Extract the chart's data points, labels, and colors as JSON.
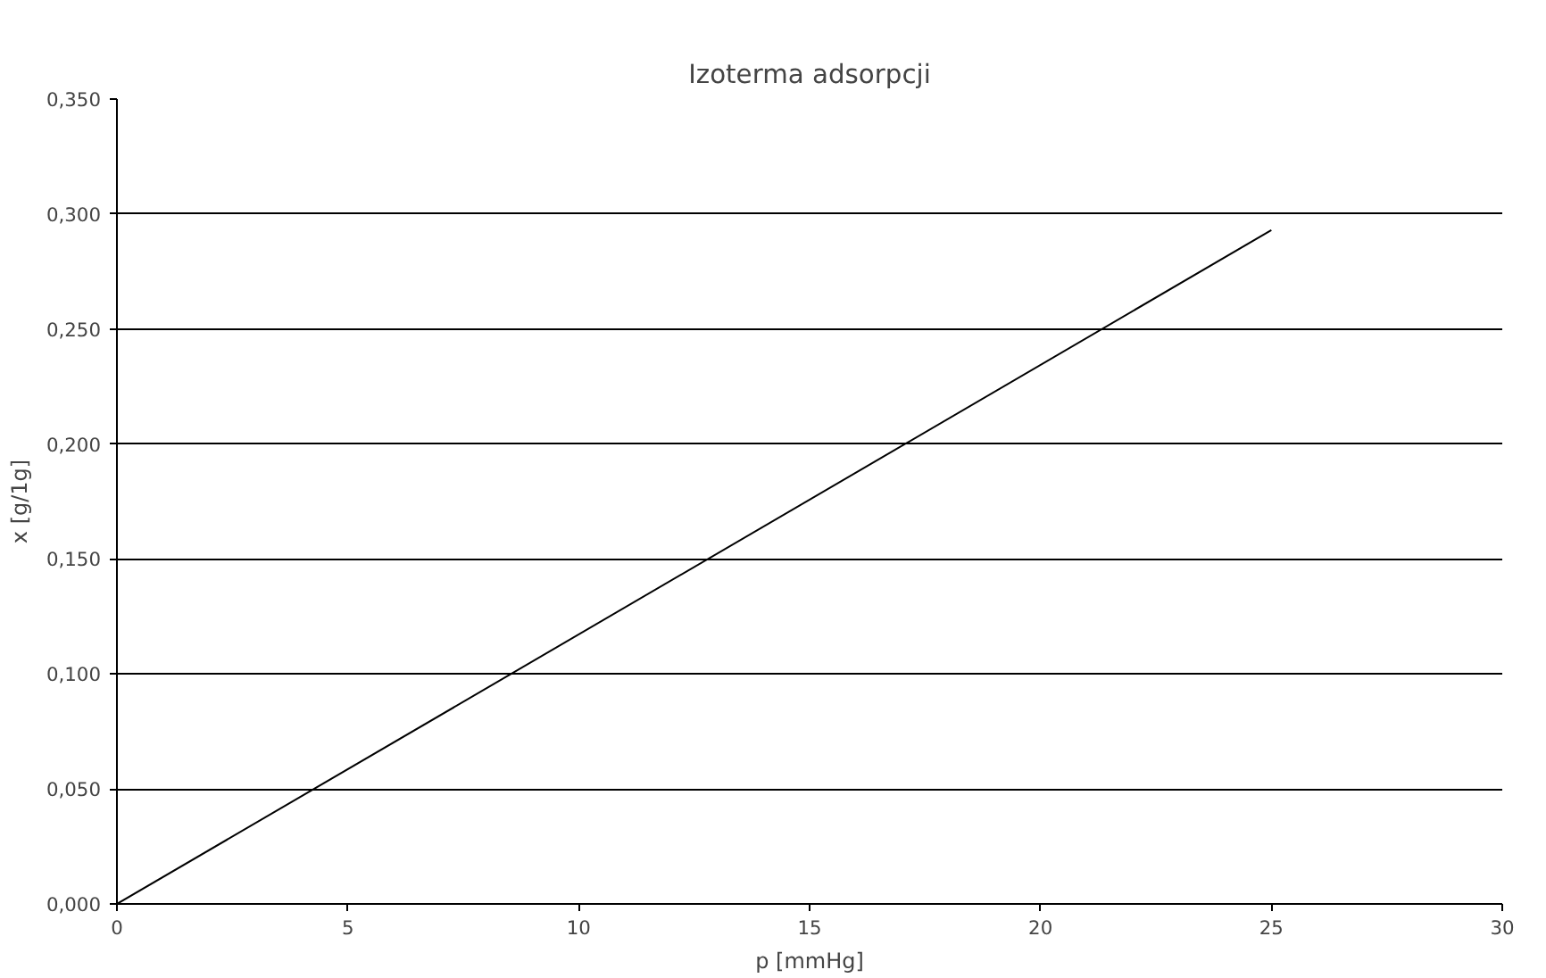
{
  "chart_data": {
    "type": "line",
    "title": "Izoterma adsorpcji",
    "xlabel": "p [mmHg]",
    "ylabel": "x [g/1g]",
    "x": [
      0,
      25
    ],
    "series": [
      {
        "color": "#000000",
        "values": [
          0,
          0.293
        ]
      }
    ],
    "xlim": [
      0,
      30
    ],
    "xticks": [
      0,
      5,
      10,
      15,
      20,
      25,
      30
    ],
    "ylim": [
      0,
      0.35
    ],
    "yticks": [
      {
        "value": 0,
        "label": "0,000"
      },
      {
        "value": 0.05,
        "label": "0,050"
      },
      {
        "value": 0.1,
        "label": "0,100"
      },
      {
        "value": 0.15,
        "label": "0,150"
      },
      {
        "value": 0.2,
        "label": "0,200"
      },
      {
        "value": 0.25,
        "label": "0,250"
      },
      {
        "value": 0.3,
        "label": "0,300"
      },
      {
        "value": 0.35,
        "label": "0,350"
      }
    ],
    "grid": "y",
    "marker": "none",
    "line_style": "solid"
  }
}
